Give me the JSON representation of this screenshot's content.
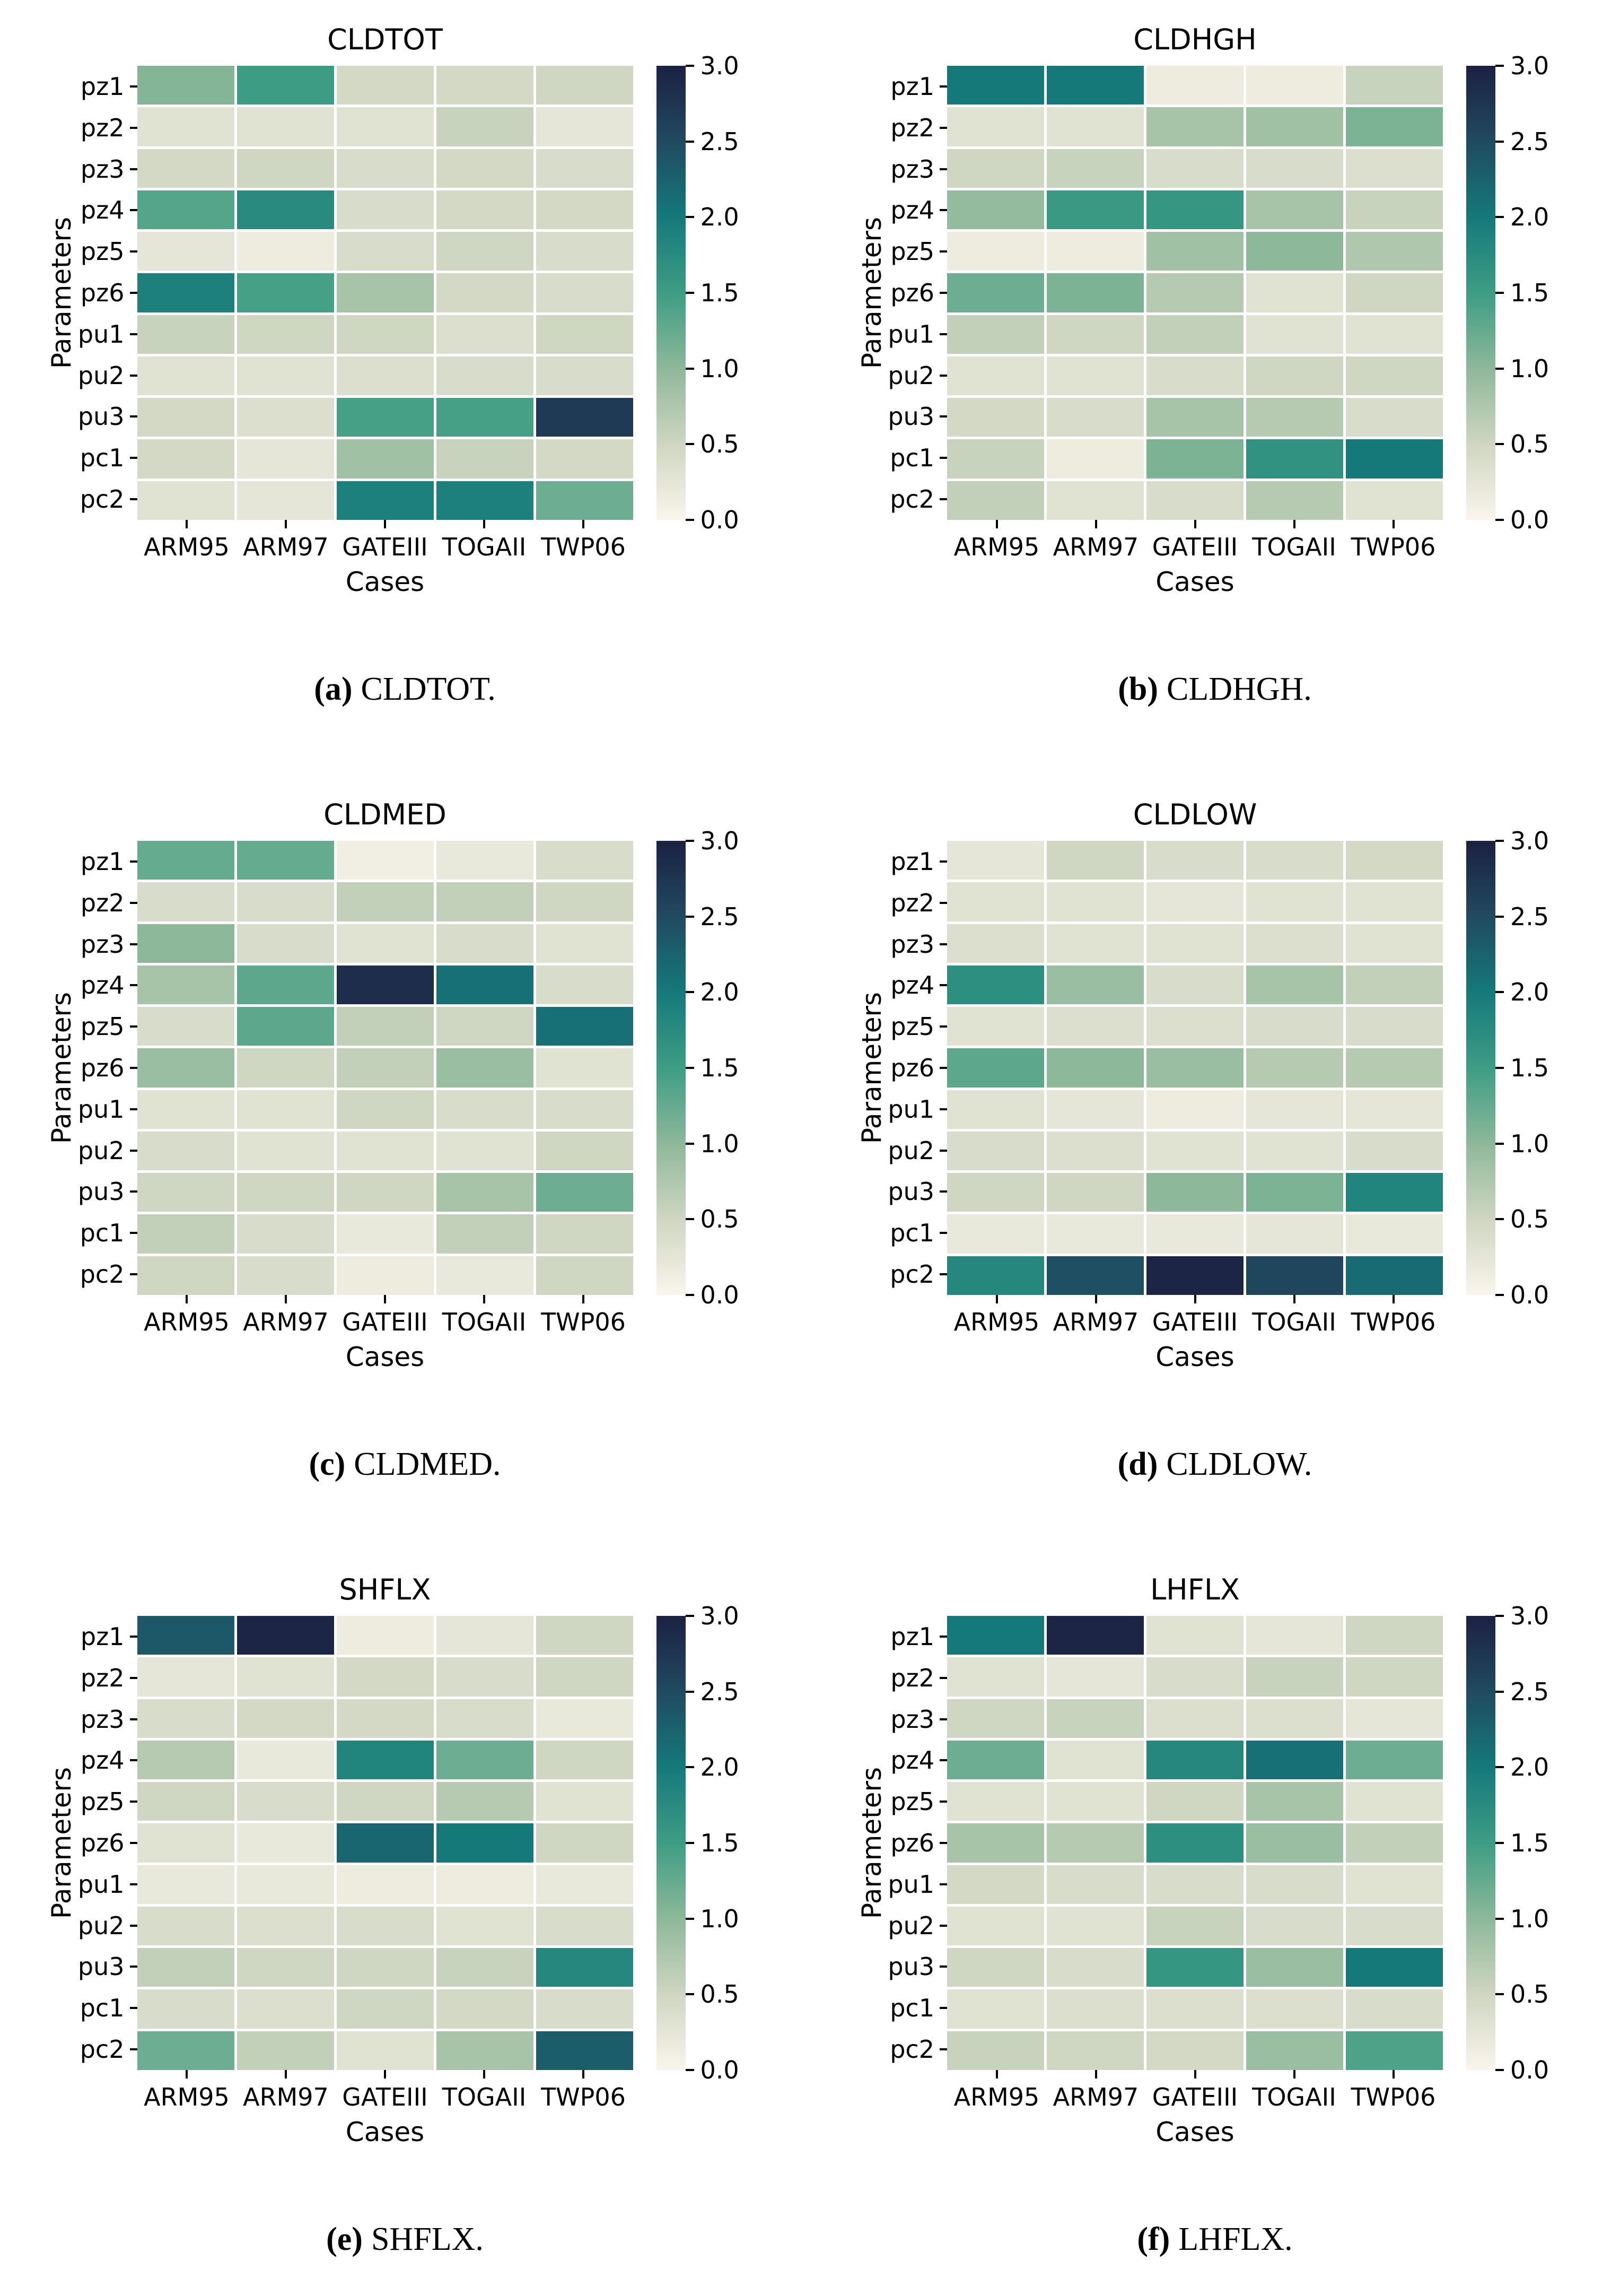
{
  "figure": {
    "rows_axis_label": "Parameters",
    "cols_axis_label": "Cases",
    "background_color": "#ffffff",
    "grid_line_color": "#ffffff"
  },
  "colormap": {
    "vmin": 0.0,
    "vmax": 3.0,
    "stops": [
      {
        "value": 0.0,
        "color": "#faf5ec"
      },
      {
        "value": 0.5,
        "color": "#cfd6c1"
      },
      {
        "value": 1.0,
        "color": "#8db899"
      },
      {
        "value": 1.5,
        "color": "#3d9d84"
      },
      {
        "value": 2.0,
        "color": "#15797a"
      },
      {
        "value": 2.5,
        "color": "#204a60"
      },
      {
        "value": 3.0,
        "color": "#1b2142"
      }
    ]
  },
  "chart_data": [
    {
      "type": "heatmap",
      "title": "CLDTOT",
      "caption_label": "(a)",
      "caption_text": "CLDTOT.",
      "xlabel": "Cases",
      "ylabel": "Parameters",
      "x_categories": [
        "ARM95",
        "ARM97",
        "GATEIII",
        "TOGAII",
        "TWP06"
      ],
      "y_categories": [
        "pz1",
        "pz2",
        "pz3",
        "pz4",
        "pz5",
        "pz6",
        "pu1",
        "pu2",
        "pu3",
        "pc1",
        "pc2"
      ],
      "colorbar_ticks": [
        3.0,
        2.5,
        2.0,
        1.5,
        1.0,
        0.5,
        0.0
      ],
      "vmin": 0.0,
      "vmax": 3.0,
      "values": [
        [
          1.05,
          1.5,
          0.45,
          0.45,
          0.5
        ],
        [
          0.3,
          0.3,
          0.3,
          0.55,
          0.25
        ],
        [
          0.45,
          0.5,
          0.4,
          0.45,
          0.4
        ],
        [
          1.35,
          1.75,
          0.4,
          0.45,
          0.45
        ],
        [
          0.25,
          0.15,
          0.4,
          0.5,
          0.4
        ],
        [
          1.9,
          1.45,
          0.8,
          0.45,
          0.4
        ],
        [
          0.55,
          0.5,
          0.5,
          0.35,
          0.5
        ],
        [
          0.3,
          0.3,
          0.35,
          0.4,
          0.4
        ],
        [
          0.45,
          0.35,
          1.45,
          1.45,
          2.7
        ],
        [
          0.45,
          0.25,
          0.85,
          0.55,
          0.45
        ],
        [
          0.3,
          0.25,
          1.9,
          1.9,
          1.2
        ]
      ]
    },
    {
      "type": "heatmap",
      "title": "CLDHGH",
      "caption_label": "(b)",
      "caption_text": "CLDHGH.",
      "xlabel": "Cases",
      "ylabel": "Parameters",
      "x_categories": [
        "ARM95",
        "ARM97",
        "GATEIII",
        "TOGAII",
        "TWP06"
      ],
      "y_categories": [
        "pz1",
        "pz2",
        "pz3",
        "pz4",
        "pz5",
        "pz6",
        "pu1",
        "pu2",
        "pu3",
        "pc1",
        "pc2"
      ],
      "colorbar_ticks": [
        3.0,
        2.5,
        2.0,
        1.5,
        1.0,
        0.5,
        0.0
      ],
      "vmin": 0.0,
      "vmax": 3.0,
      "values": [
        [
          2.0,
          2.0,
          0.15,
          0.15,
          0.55
        ],
        [
          0.3,
          0.3,
          0.8,
          0.85,
          1.1
        ],
        [
          0.5,
          0.55,
          0.4,
          0.4,
          0.35
        ],
        [
          0.95,
          1.55,
          1.6,
          0.8,
          0.55
        ],
        [
          0.15,
          0.15,
          0.85,
          1.0,
          0.75
        ],
        [
          1.2,
          1.1,
          0.7,
          0.3,
          0.5
        ],
        [
          0.6,
          0.5,
          0.6,
          0.3,
          0.3
        ],
        [
          0.3,
          0.3,
          0.4,
          0.5,
          0.5
        ],
        [
          0.45,
          0.4,
          0.8,
          0.7,
          0.4
        ],
        [
          0.55,
          0.15,
          1.1,
          1.65,
          2.0
        ],
        [
          0.6,
          0.3,
          0.4,
          0.7,
          0.3
        ]
      ]
    },
    {
      "type": "heatmap",
      "title": "CLDMED",
      "caption_label": "(c)",
      "caption_text": "CLDMED.",
      "xlabel": "Cases",
      "ylabel": "Parameters",
      "x_categories": [
        "ARM95",
        "ARM97",
        "GATEIII",
        "TOGAII",
        "TWP06"
      ],
      "y_categories": [
        "pz1",
        "pz2",
        "pz3",
        "pz4",
        "pz5",
        "pz6",
        "pu1",
        "pu2",
        "pu3",
        "pc1",
        "pc2"
      ],
      "colorbar_ticks": [
        3.0,
        2.5,
        2.0,
        1.5,
        1.0,
        0.5,
        0.0
      ],
      "vmin": 0.0,
      "vmax": 3.0,
      "values": [
        [
          1.25,
          1.25,
          0.1,
          0.2,
          0.4
        ],
        [
          0.4,
          0.4,
          0.6,
          0.6,
          0.5
        ],
        [
          1.0,
          0.4,
          0.3,
          0.4,
          0.3
        ],
        [
          0.8,
          1.3,
          2.85,
          2.1,
          0.4
        ],
        [
          0.4,
          1.3,
          0.6,
          0.5,
          2.1
        ],
        [
          0.9,
          0.5,
          0.6,
          0.9,
          0.3
        ],
        [
          0.3,
          0.3,
          0.5,
          0.4,
          0.4
        ],
        [
          0.4,
          0.3,
          0.3,
          0.3,
          0.5
        ],
        [
          0.5,
          0.5,
          0.5,
          0.8,
          1.2
        ],
        [
          0.6,
          0.4,
          0.2,
          0.6,
          0.5
        ],
        [
          0.5,
          0.4,
          0.15,
          0.2,
          0.5
        ]
      ]
    },
    {
      "type": "heatmap",
      "title": "CLDLOW",
      "caption_label": "(d)",
      "caption_text": "CLDLOW.",
      "xlabel": "Cases",
      "ylabel": "Parameters",
      "x_categories": [
        "ARM95",
        "ARM97",
        "GATEIII",
        "TOGAII",
        "TWP06"
      ],
      "y_categories": [
        "pz1",
        "pz2",
        "pz3",
        "pz4",
        "pz5",
        "pz6",
        "pu1",
        "pu2",
        "pu3",
        "pc1",
        "pc2"
      ],
      "colorbar_ticks": [
        3.0,
        2.5,
        2.0,
        1.5,
        1.0,
        0.5,
        0.0
      ],
      "vmin": 0.0,
      "vmax": 3.0,
      "values": [
        [
          0.25,
          0.5,
          0.4,
          0.4,
          0.45
        ],
        [
          0.3,
          0.3,
          0.25,
          0.3,
          0.3
        ],
        [
          0.35,
          0.3,
          0.3,
          0.35,
          0.3
        ],
        [
          1.7,
          0.9,
          0.4,
          0.8,
          0.6
        ],
        [
          0.3,
          0.35,
          0.35,
          0.4,
          0.4
        ],
        [
          1.3,
          1.0,
          0.9,
          0.7,
          0.7
        ],
        [
          0.3,
          0.25,
          0.15,
          0.25,
          0.25
        ],
        [
          0.4,
          0.35,
          0.3,
          0.3,
          0.4
        ],
        [
          0.5,
          0.5,
          1.0,
          1.1,
          1.85
        ],
        [
          0.2,
          0.2,
          0.2,
          0.25,
          0.2
        ],
        [
          1.8,
          2.45,
          2.95,
          2.55,
          2.15
        ]
      ]
    },
    {
      "type": "heatmap",
      "title": "SHFLX",
      "caption_label": "(e)",
      "caption_text": "SHFLX.",
      "xlabel": "Cases",
      "ylabel": "Parameters",
      "x_categories": [
        "ARM95",
        "ARM97",
        "GATEIII",
        "TOGAII",
        "TWP06"
      ],
      "y_categories": [
        "pz1",
        "pz2",
        "pz3",
        "pz4",
        "pz5",
        "pz6",
        "pu1",
        "pu2",
        "pu3",
        "pc1",
        "pc2"
      ],
      "colorbar_ticks": [
        3.0,
        2.5,
        2.0,
        1.5,
        1.0,
        0.5,
        0.0
      ],
      "vmin": 0.0,
      "vmax": 3.0,
      "values": [
        [
          2.35,
          2.95,
          0.15,
          0.25,
          0.5
        ],
        [
          0.25,
          0.3,
          0.45,
          0.4,
          0.5
        ],
        [
          0.4,
          0.45,
          0.45,
          0.4,
          0.2
        ],
        [
          0.7,
          0.2,
          1.85,
          1.2,
          0.5
        ],
        [
          0.5,
          0.4,
          0.5,
          0.7,
          0.3
        ],
        [
          0.3,
          0.2,
          2.2,
          2.0,
          0.5
        ],
        [
          0.2,
          0.2,
          0.15,
          0.15,
          0.2
        ],
        [
          0.4,
          0.35,
          0.4,
          0.3,
          0.4
        ],
        [
          0.6,
          0.5,
          0.5,
          0.55,
          1.8
        ],
        [
          0.4,
          0.35,
          0.5,
          0.45,
          0.4
        ],
        [
          1.2,
          0.6,
          0.3,
          0.8,
          2.3
        ]
      ]
    },
    {
      "type": "heatmap",
      "title": "LHFLX",
      "caption_label": "(f)",
      "caption_text": "LHFLX.",
      "xlabel": "Cases",
      "ylabel": "Parameters",
      "x_categories": [
        "ARM95",
        "ARM97",
        "GATEIII",
        "TOGAII",
        "TWP06"
      ],
      "y_categories": [
        "pz1",
        "pz2",
        "pz3",
        "pz4",
        "pz5",
        "pz6",
        "pu1",
        "pu2",
        "pu3",
        "pc1",
        "pc2"
      ],
      "colorbar_ticks": [
        3.0,
        2.5,
        2.0,
        1.5,
        1.0,
        0.5,
        0.0
      ],
      "vmin": 0.0,
      "vmax": 3.0,
      "values": [
        [
          2.0,
          2.95,
          0.3,
          0.25,
          0.5
        ],
        [
          0.3,
          0.25,
          0.4,
          0.55,
          0.5
        ],
        [
          0.5,
          0.55,
          0.35,
          0.35,
          0.25
        ],
        [
          1.2,
          0.3,
          1.8,
          2.1,
          1.2
        ],
        [
          0.3,
          0.3,
          0.5,
          0.8,
          0.3
        ],
        [
          0.8,
          0.7,
          1.7,
          0.9,
          0.6
        ],
        [
          0.45,
          0.4,
          0.4,
          0.4,
          0.3
        ],
        [
          0.3,
          0.3,
          0.55,
          0.4,
          0.4
        ],
        [
          0.5,
          0.4,
          1.6,
          0.9,
          2.0
        ],
        [
          0.3,
          0.35,
          0.35,
          0.35,
          0.4
        ],
        [
          0.55,
          0.5,
          0.45,
          0.9,
          1.4
        ]
      ]
    }
  ]
}
